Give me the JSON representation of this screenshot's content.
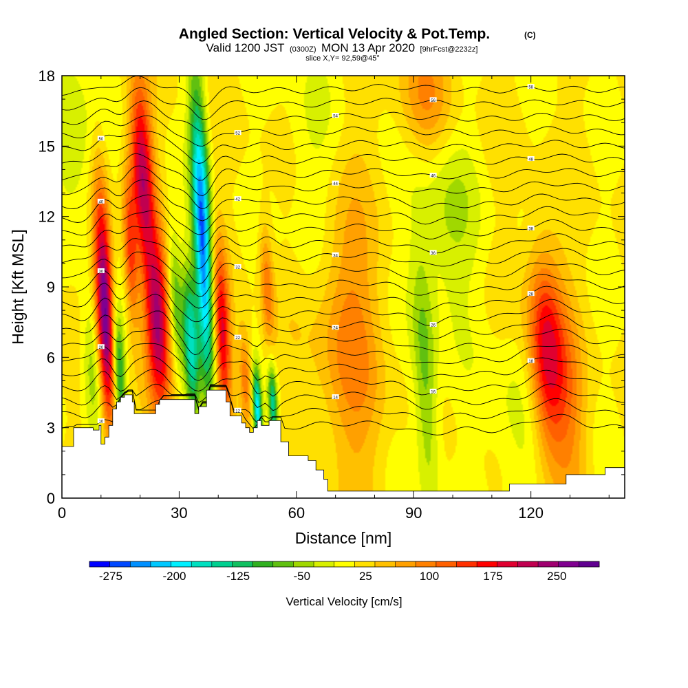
{
  "header": {
    "title_main": "Angled Section: Vertical Velocity & Pot.Temp.",
    "title_unit": "(C)",
    "subtitle_valid": "Valid 1200 JST",
    "subtitle_utc": "(0300Z)",
    "subtitle_date": "MON 13 Apr 2020",
    "subtitle_fcst": "[9hrFcst@2232z]",
    "slice_text": "slice X,Y= 92,59@45°"
  },
  "chart_data": {
    "type": "heatmap",
    "xlabel": "Distance [nm]",
    "ylabel": "Height [Kft MSL]",
    "xlim": [
      0,
      144
    ],
    "ylim": [
      0,
      18
    ],
    "xticks": [
      "0",
      "30",
      "60",
      "90",
      "120"
    ],
    "yticks": [
      "0",
      "3",
      "6",
      "9",
      "12",
      "15",
      "18"
    ],
    "colorbar": {
      "label": "Vertical Velocity [cm/s]",
      "ticks": [
        "-275",
        "-200",
        "-125",
        "-50",
        "25",
        "100",
        "175",
        "250"
      ],
      "range": [
        -300,
        300
      ],
      "colors": [
        "#0000ff",
        "#0048ff",
        "#0090ff",
        "#00c8ff",
        "#00f0ff",
        "#00e0c0",
        "#00d090",
        "#10c060",
        "#30b020",
        "#60c010",
        "#a0d800",
        "#d8f000",
        "#ffff00",
        "#ffe000",
        "#ffc000",
        "#ffa000",
        "#ff8000",
        "#ff6000",
        "#ff3000",
        "#ff0000",
        "#e00030",
        "#c00050",
        "#a00070",
        "#800090",
        "#600090"
      ]
    },
    "terrain_kft": [
      [
        0,
        2.2
      ],
      [
        3,
        3.0
      ],
      [
        8,
        2.9
      ],
      [
        9.5,
        3.1
      ],
      [
        10,
        2.3
      ],
      [
        11,
        2.6
      ],
      [
        12,
        3.1
      ],
      [
        13,
        3.8
      ],
      [
        14,
        4.1
      ],
      [
        15,
        4.3
      ],
      [
        16,
        4.4
      ],
      [
        18,
        4.1
      ],
      [
        18.5,
        3.6
      ],
      [
        23,
        3.6
      ],
      [
        24,
        4.0
      ],
      [
        25,
        4.2
      ],
      [
        33,
        4.2
      ],
      [
        34,
        3.6
      ],
      [
        35,
        3.9
      ],
      [
        37,
        4.6
      ],
      [
        41,
        4.6
      ],
      [
        42,
        4.1
      ],
      [
        43,
        3.5
      ],
      [
        45,
        3.5
      ],
      [
        46,
        3.2
      ],
      [
        47,
        3.0
      ],
      [
        48,
        2.8
      ],
      [
        49,
        3.0
      ],
      [
        50,
        3.3
      ],
      [
        51,
        3.1
      ],
      [
        53,
        3.3
      ],
      [
        55,
        3.3
      ],
      [
        56,
        2.4
      ],
      [
        58,
        1.8
      ],
      [
        61,
        1.8
      ],
      [
        63,
        1.6
      ],
      [
        65,
        1.2
      ],
      [
        67,
        0.8
      ],
      [
        68,
        0.3
      ],
      [
        114,
        0.3
      ],
      [
        114.5,
        0.6
      ],
      [
        128,
        0.6
      ],
      [
        129,
        1.0
      ],
      [
        138,
        1.0
      ],
      [
        139,
        1.3
      ],
      [
        144,
        1.3
      ]
    ],
    "updrafts": [
      {
        "x": 11,
        "y": 8.0,
        "sx": 1.6,
        "sy": 3.5,
        "w": 285
      },
      {
        "x": 20.5,
        "y": 14.0,
        "sx": 2.0,
        "sy": 2.6,
        "w": 200
      },
      {
        "x": 24.5,
        "y": 7.5,
        "sx": 2.2,
        "sy": 2.6,
        "w": 220
      },
      {
        "x": 17.5,
        "y": 10.5,
        "sx": 1.2,
        "sy": 2.2,
        "w": 120
      },
      {
        "x": 41,
        "y": 7.0,
        "sx": 1.5,
        "sy": 2.6,
        "w": 170
      },
      {
        "x": 124,
        "y": 6.0,
        "sx": 3.2,
        "sy": 3.0,
        "w": 185
      },
      {
        "x": 73,
        "y": 7.0,
        "sx": 6.0,
        "sy": 4.5,
        "w": 80
      },
      {
        "x": 93,
        "y": 17.0,
        "sx": 5.0,
        "sy": 2.0,
        "w": 70
      },
      {
        "x": 47,
        "y": 5.0,
        "sx": 1.2,
        "sy": 1.5,
        "w": 100
      },
      {
        "x": 52.5,
        "y": 9.0,
        "sx": 1.2,
        "sy": 2.0,
        "w": 90
      },
      {
        "x": 130,
        "y": 4.0,
        "sx": 3.0,
        "sy": 3.0,
        "w": 60
      }
    ],
    "downdrafts": [
      {
        "x": 36,
        "y": 11.0,
        "sx": 1.6,
        "sy": 4.5,
        "w": -280
      },
      {
        "x": 14.5,
        "y": 5.5,
        "sx": 1.2,
        "sy": 1.8,
        "w": -150
      },
      {
        "x": 33,
        "y": 6.5,
        "sx": 1.3,
        "sy": 2.2,
        "w": -170
      },
      {
        "x": 50,
        "y": 3.8,
        "sx": 0.8,
        "sy": 1.2,
        "w": -200
      },
      {
        "x": 54,
        "y": 4.0,
        "sx": 0.8,
        "sy": 1.2,
        "w": -160
      },
      {
        "x": 29,
        "y": 8.5,
        "sx": 1.2,
        "sy": 2.0,
        "w": -90
      },
      {
        "x": 93,
        "y": 5.0,
        "sx": 2.2,
        "sy": 4.0,
        "w": -90
      },
      {
        "x": 8,
        "y": 5.5,
        "sx": 2.0,
        "sy": 2.0,
        "w": -80
      },
      {
        "x": 98,
        "y": 12.0,
        "sx": 6.0,
        "sy": 3.0,
        "w": -55
      },
      {
        "x": 3,
        "y": 15.0,
        "sx": 4.0,
        "sy": 3.0,
        "w": -55
      },
      {
        "x": 116,
        "y": 3.0,
        "sx": 6.0,
        "sy": 3.0,
        "w": -35
      },
      {
        "x": 64,
        "y": 14.0,
        "sx": 5.0,
        "sy": 4.0,
        "w": -35
      }
    ],
    "theta_contours": {
      "levels_kft": [
        3.0,
        3.6,
        4.2,
        4.8,
        5.4,
        6.0,
        6.6,
        7.2,
        7.8,
        8.4,
        9.0,
        9.6,
        10.2,
        10.8,
        11.4,
        12.0,
        12.6,
        13.2,
        13.8,
        14.4,
        15.0,
        15.6,
        16.2,
        16.8,
        17.4
      ],
      "labels": [
        "10",
        "12",
        "14",
        "16",
        "18",
        "20",
        "22",
        "24",
        "26",
        "28",
        "30",
        "32",
        "34",
        "36",
        "38",
        "40",
        "42",
        "44",
        "46",
        "48",
        "50",
        "52",
        "54",
        "56",
        "58"
      ]
    }
  }
}
